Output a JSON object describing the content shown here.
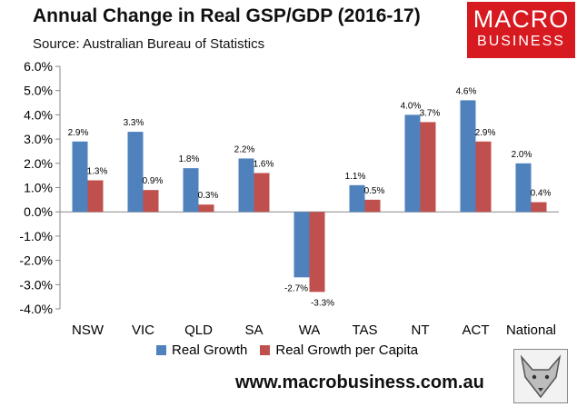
{
  "title": "Annual Change in Real GSP/GDP (2016-17)",
  "source": "Source: Australian Bureau of Statistics",
  "logo": {
    "line1": "MACRO",
    "line2": "BUSINESS"
  },
  "website": "www.macrobusiness.com.au",
  "colors": {
    "series1": "#4f81bd",
    "series2": "#c0504d",
    "logo_bg": "#d71920"
  },
  "chart_data": {
    "type": "bar",
    "title": "Annual Change in Real GSP/GDP (2016-17)",
    "categories": [
      "NSW",
      "VIC",
      "QLD",
      "SA",
      "WA",
      "TAS",
      "NT",
      "ACT",
      "National"
    ],
    "series": [
      {
        "name": "Real Growth",
        "values": [
          2.9,
          3.3,
          1.8,
          2.2,
          -2.7,
          1.1,
          4.0,
          4.6,
          2.0
        ],
        "labels": [
          "2.9%",
          "3.3%",
          "1.8%",
          "2.2%",
          "-2.7%",
          "1.1%",
          "4.0%",
          "4.6%",
          "2.0%"
        ]
      },
      {
        "name": "Real Growth per Capita",
        "values": [
          1.3,
          0.9,
          0.3,
          1.6,
          -3.3,
          0.5,
          3.7,
          2.9,
          0.4
        ],
        "labels": [
          "1.3%",
          "0.9%",
          "0.3%",
          "1.6%",
          "-3.3%",
          "0.5%",
          "3.7%",
          "2.9%",
          "0.4%"
        ]
      }
    ],
    "yticks": [
      6.0,
      5.0,
      4.0,
      3.0,
      2.0,
      1.0,
      0.0,
      -1.0,
      -2.0,
      -3.0,
      -4.0
    ],
    "ytick_labels": [
      "6.0%",
      "5.0%",
      "4.0%",
      "3.0%",
      "2.0%",
      "1.0%",
      "0.0%",
      "-1.0%",
      "-2.0%",
      "-3.0%",
      "-4.0%"
    ],
    "ylim": [
      -4.0,
      6.0
    ],
    "xlabel": "",
    "ylabel": "",
    "grid": false,
    "legend": "bottom"
  }
}
